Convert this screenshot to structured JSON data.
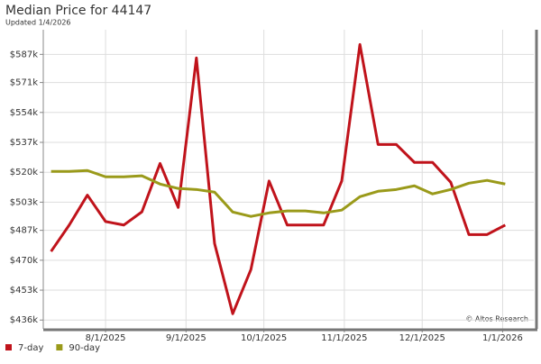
{
  "chart_data": {
    "type": "line",
    "title": "Median Price for 44147",
    "subtitle": "Updated 1/4/2026",
    "annotation": "© Altos Research",
    "x": [
      "7/11/2025",
      "7/18/2025",
      "7/25/2025",
      "8/1/2025",
      "8/8/2025",
      "8/15/2025",
      "8/22/2025",
      "8/29/2025",
      "9/5/2025",
      "9/12/2025",
      "9/19/2025",
      "9/26/2025",
      "10/3/2025",
      "10/10/2025",
      "10/17/2025",
      "10/24/2025",
      "10/31/2025",
      "11/7/2025",
      "11/14/2025",
      "11/21/2025",
      "11/28/2025",
      "12/5/2025",
      "12/12/2025",
      "12/19/2025",
      "12/26/2025",
      "1/2/2026"
    ],
    "xlim": [
      "7/8/2025",
      "1/13/2026"
    ],
    "xticks": [
      "8/1/2025",
      "9/1/2025",
      "10/1/2025",
      "11/1/2025",
      "12/1/2025",
      "1/1/2026"
    ],
    "ylim": [
      431000,
      601000
    ],
    "yticks": [
      {
        "value": 436000,
        "label": "$436k"
      },
      {
        "value": 453000,
        "label": "$453k"
      },
      {
        "value": 470000,
        "label": "$470k"
      },
      {
        "value": 487000,
        "label": "$487k"
      },
      {
        "value": 503000,
        "label": "$503k"
      },
      {
        "value": 520000,
        "label": "$520k"
      },
      {
        "value": 537000,
        "label": "$537k"
      },
      {
        "value": 554000,
        "label": "$554k"
      },
      {
        "value": 571000,
        "label": "$571k"
      },
      {
        "value": 587000,
        "label": "$587k"
      }
    ],
    "grid": true,
    "legend": "bottom-left",
    "series": [
      {
        "name": "7-day",
        "color": "#c0131b",
        "values": [
          475000,
          490000,
          507000,
          492000,
          490000,
          497500,
          525000,
          500000,
          585000,
          479500,
          439600,
          464700,
          515000,
          490000,
          490000,
          490000,
          515000,
          592600,
          535800,
          535800,
          525600,
          525600,
          514300,
          484600,
          484600,
          490000
        ]
      },
      {
        "name": "90-day",
        "color": "#9a9a1a",
        "values": [
          520500,
          520500,
          521000,
          517400,
          517400,
          518000,
          513300,
          510800,
          510200,
          508700,
          497400,
          494900,
          496900,
          498000,
          498000,
          496900,
          498500,
          506100,
          509200,
          510200,
          512300,
          507700,
          510200,
          513800,
          515400,
          513300
        ]
      }
    ]
  }
}
